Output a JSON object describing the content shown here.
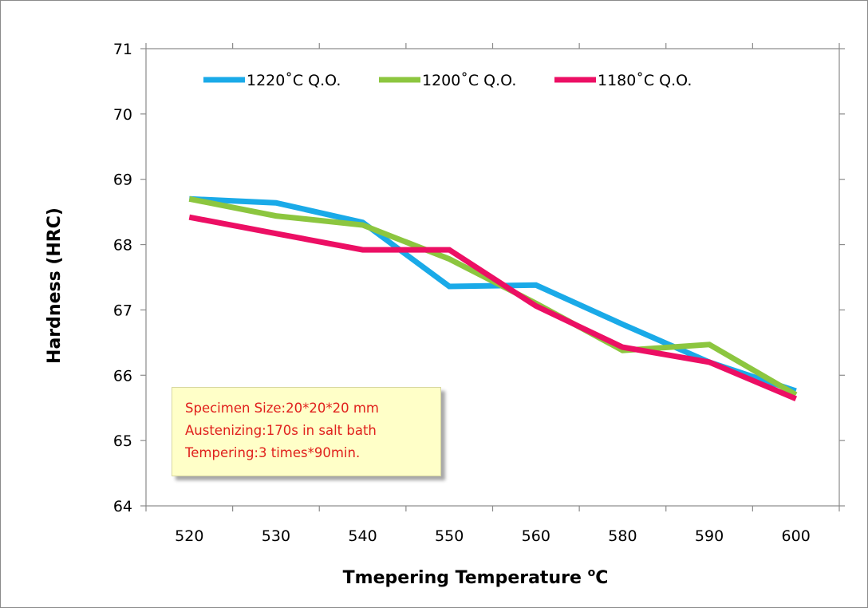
{
  "chart_data": {
    "type": "line",
    "categories": [
      "520",
      "530",
      "540",
      "550",
      "560",
      "580",
      "590",
      "600"
    ],
    "series": [
      {
        "name": "1220˚C Q.O.",
        "color": "#1aaae8",
        "values": [
          68.7,
          68.64,
          68.34,
          67.36,
          67.38,
          66.78,
          66.2,
          65.76
        ]
      },
      {
        "name": "1200˚C Q.O.",
        "color": "#8cc63f",
        "values": [
          68.7,
          68.44,
          68.3,
          67.78,
          67.1,
          66.38,
          66.47,
          65.7
        ]
      },
      {
        "name": "1180˚C Q.O.",
        "color": "#ec0f64",
        "values": [
          68.42,
          68.17,
          67.92,
          67.92,
          67.06,
          66.43,
          66.2,
          65.64
        ]
      }
    ],
    "title": "",
    "xlabel": "Tmepering Temperature",
    "xlabel_unit_sup": "o",
    "xlabel_unit": "C",
    "ylabel": "Hardness (HRC)",
    "ylim": [
      64,
      71
    ],
    "yticks": [
      "64",
      "65",
      "66",
      "67",
      "68",
      "69",
      "70",
      "71"
    ],
    "grid": false,
    "legend_position": "top",
    "annotation": {
      "lines": [
        "Specimen Size:20*20*20 mm",
        "Austenizing:170s in salt bath",
        "Tempering:3 times*90min."
      ],
      "color": "#e0201c",
      "background": "#ffffc8"
    }
  }
}
